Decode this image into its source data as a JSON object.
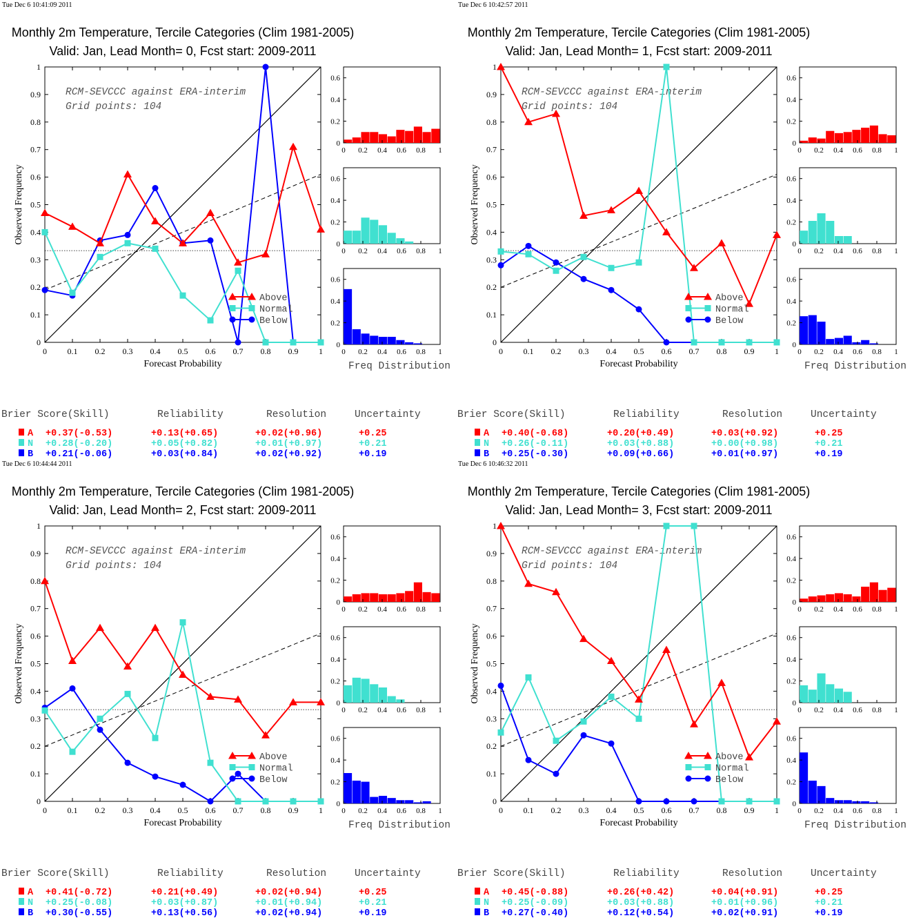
{
  "colors": {
    "above": "#ff0000",
    "normal": "#40e0d0",
    "below": "#0000ff",
    "diagonal": "#000000",
    "skill_line": "#000000",
    "climatology": "#000000"
  },
  "common": {
    "title": "Monthly 2m Temperature, Tercile Categories (Clim 1981-2005)",
    "xlabel": "Forecast Probability",
    "ylabel": "Observed Frequency",
    "annotation_1": "RCM-SEVCCC against ERA-interim",
    "annotation_2": "Grid points:  104",
    "legend": [
      "Above",
      "Normal",
      "Below"
    ],
    "freq_label": "Freq Distribution",
    "score_headers": [
      "Brier Score(Skill)",
      "Reliability",
      "Resolution",
      "Uncertainty"
    ],
    "x_ticks": [
      "0",
      "0.1",
      "0.2",
      "0.3",
      "0.4",
      "0.5",
      "0.6",
      "0.7",
      "0.8",
      "0.9",
      "1"
    ],
    "y_ticks": [
      "0",
      "0.1",
      "0.2",
      "0.3",
      "0.4",
      "0.5",
      "0.6",
      "0.7",
      "0.8",
      "0.9",
      "1"
    ],
    "hist_x_ticks": [
      "0",
      "0.2",
      "0.4",
      "0.6",
      "0.8",
      "1"
    ],
    "hist_y_ticks": [
      "0",
      "0.2",
      "0.4",
      "0.6"
    ],
    "category_letters": [
      "A",
      "N",
      "B"
    ]
  },
  "chart_data": [
    {
      "type": "line",
      "timestamp": "Tue Dec  6 10:41:09 2011",
      "subtitle": "Valid: Jan, Lead Month= 0, Fcst start: 2009-2011",
      "x": [
        0,
        0.1,
        0.2,
        0.3,
        0.4,
        0.5,
        0.6,
        0.7,
        0.8,
        0.9,
        1.0
      ],
      "xlim": [
        0,
        1
      ],
      "ylim": [
        0,
        1
      ],
      "climatology": 0.333,
      "skill_line": [
        [
          0,
          0.19
        ],
        [
          1,
          0.61
        ]
      ],
      "series": [
        {
          "name": "Above",
          "values": [
            0.47,
            0.42,
            0.36,
            0.61,
            0.44,
            0.36,
            0.47,
            0.29,
            0.32,
            0.71,
            0.41
          ]
        },
        {
          "name": "Normal",
          "values": [
            0.4,
            0.18,
            0.31,
            0.36,
            0.34,
            0.17,
            0.08,
            0.26,
            0.0,
            0.0,
            0.0
          ]
        },
        {
          "name": "Below",
          "values": [
            0.19,
            0.17,
            0.37,
            0.39,
            0.56,
            0.36,
            0.37,
            0.0,
            1.0,
            0.0,
            0.0
          ]
        }
      ],
      "freq_dist": {
        "bins": [
          0,
          0.1,
          0.2,
          0.3,
          0.4,
          0.5,
          0.6,
          0.7,
          0.8,
          0.9,
          1.0
        ],
        "above": [
          0.03,
          0.05,
          0.1,
          0.1,
          0.08,
          0.06,
          0.12,
          0.11,
          0.15,
          0.1,
          0.13
        ],
        "normal": [
          0.12,
          0.12,
          0.24,
          0.22,
          0.17,
          0.1,
          0.05,
          0.02,
          0,
          0,
          0
        ],
        "below": [
          0.51,
          0.14,
          0.1,
          0.08,
          0.07,
          0.07,
          0.04,
          0.02,
          0.01,
          0,
          0
        ]
      },
      "scores": {
        "A": [
          "+0.37(-0.53)",
          "+0.13(+0.65)",
          "+0.02(+0.96)",
          "+0.25"
        ],
        "N": [
          "+0.28(-0.20)",
          "+0.05(+0.82)",
          "+0.01(+0.97)",
          "+0.21"
        ],
        "B": [
          "+0.21(-0.06)",
          "+0.03(+0.84)",
          "+0.02(+0.92)",
          "+0.19"
        ]
      }
    },
    {
      "type": "line",
      "timestamp": "Tue Dec  6 10:42:57 2011",
      "subtitle": "Valid: Jan, Lead Month= 1, Fcst start: 2009-2011",
      "x": [
        0,
        0.1,
        0.2,
        0.3,
        0.4,
        0.5,
        0.6,
        0.7,
        0.8,
        0.9,
        1.0
      ],
      "xlim": [
        0,
        1
      ],
      "ylim": [
        0,
        1
      ],
      "climatology": 0.333,
      "skill_line": [
        [
          0,
          0.2
        ],
        [
          1,
          0.61
        ]
      ],
      "series": [
        {
          "name": "Above",
          "values": [
            1.0,
            0.8,
            0.83,
            0.46,
            0.48,
            0.55,
            0.4,
            0.27,
            0.36,
            0.14,
            0.39
          ]
        },
        {
          "name": "Normal",
          "values": [
            0.33,
            0.32,
            0.26,
            0.31,
            0.27,
            0.29,
            1.0,
            0.0,
            0.0,
            0.0,
            0.0
          ]
        },
        {
          "name": "Below",
          "values": [
            0.28,
            0.35,
            0.29,
            0.23,
            0.19,
            0.12,
            0.0,
            0.0,
            0.0,
            0.0,
            0.0
          ]
        }
      ],
      "freq_dist": {
        "bins": [
          0,
          0.1,
          0.2,
          0.3,
          0.4,
          0.5,
          0.6,
          0.7,
          0.8,
          0.9,
          1.0
        ],
        "above": [
          0.02,
          0.05,
          0.04,
          0.11,
          0.09,
          0.1,
          0.12,
          0.14,
          0.16,
          0.08,
          0.07
        ],
        "normal": [
          0.12,
          0.21,
          0.28,
          0.21,
          0.07,
          0.07,
          0,
          0,
          0,
          0,
          0
        ],
        "below": [
          0.26,
          0.27,
          0.21,
          0.05,
          0.06,
          0.08,
          0.02,
          0.04,
          0.01,
          0,
          0
        ]
      },
      "scores": {
        "A": [
          "+0.40(-0.68)",
          "+0.20(+0.49)",
          "+0.03(+0.92)",
          "+0.25"
        ],
        "N": [
          "+0.26(-0.11)",
          "+0.03(+0.88)",
          "+0.00(+0.98)",
          "+0.21"
        ],
        "B": [
          "+0.25(-0.30)",
          "+0.09(+0.66)",
          "+0.01(+0.97)",
          "+0.19"
        ]
      }
    },
    {
      "type": "line",
      "timestamp": "Tue Dec  6 10:44:44 2011",
      "subtitle": "Valid: Jan, Lead Month= 2, Fcst start: 2009-2011",
      "x": [
        0,
        0.1,
        0.2,
        0.3,
        0.4,
        0.5,
        0.6,
        0.7,
        0.8,
        0.9,
        1.0
      ],
      "xlim": [
        0,
        1
      ],
      "ylim": [
        0,
        1
      ],
      "climatology": 0.333,
      "skill_line": [
        [
          0,
          0.2
        ],
        [
          1,
          0.61
        ]
      ],
      "series": [
        {
          "name": "Above",
          "values": [
            0.8,
            0.51,
            0.63,
            0.49,
            0.63,
            0.46,
            0.38,
            0.37,
            0.24,
            0.36,
            0.36
          ]
        },
        {
          "name": "Normal",
          "values": [
            0.33,
            0.18,
            0.3,
            0.39,
            0.23,
            0.65,
            0.14,
            0.0,
            0.0,
            0.0,
            0.0
          ]
        },
        {
          "name": "Below",
          "values": [
            0.34,
            0.41,
            0.26,
            0.14,
            0.09,
            0.06,
            0.0,
            0.1,
            0.0,
            0.0,
            0.0
          ]
        }
      ],
      "freq_dist": {
        "bins": [
          0,
          0.1,
          0.2,
          0.3,
          0.4,
          0.5,
          0.6,
          0.7,
          0.8,
          0.9,
          1.0
        ],
        "above": [
          0.05,
          0.07,
          0.08,
          0.08,
          0.07,
          0.07,
          0.08,
          0.1,
          0.18,
          0.09,
          0.08
        ],
        "normal": [
          0.16,
          0.23,
          0.22,
          0.17,
          0.14,
          0.06,
          0.03,
          0,
          0,
          0,
          0
        ],
        "below": [
          0.28,
          0.21,
          0.2,
          0.06,
          0.07,
          0.05,
          0.03,
          0.03,
          0.01,
          0.02,
          0
        ]
      },
      "scores": {
        "A": [
          "+0.41(-0.72)",
          "+0.21(+0.49)",
          "+0.02(+0.94)",
          "+0.25"
        ],
        "N": [
          "+0.25(-0.08)",
          "+0.03(+0.87)",
          "+0.01(+0.94)",
          "+0.21"
        ],
        "B": [
          "+0.30(-0.55)",
          "+0.13(+0.56)",
          "+0.02(+0.94)",
          "+0.19"
        ]
      }
    },
    {
      "type": "line",
      "timestamp": "Tue Dec  6 10:46:32 2011",
      "subtitle": "Valid: Jan, Lead Month= 3, Fcst start: 2009-2011",
      "x": [
        0,
        0.1,
        0.2,
        0.3,
        0.4,
        0.5,
        0.6,
        0.7,
        0.8,
        0.9,
        1.0
      ],
      "xlim": [
        0,
        1
      ],
      "ylim": [
        0,
        1
      ],
      "climatology": 0.333,
      "skill_line": [
        [
          0,
          0.2
        ],
        [
          1,
          0.61
        ]
      ],
      "series": [
        {
          "name": "Above",
          "values": [
            1.0,
            0.79,
            0.76,
            0.59,
            0.51,
            0.37,
            0.55,
            0.28,
            0.43,
            0.16,
            0.29
          ]
        },
        {
          "name": "Normal",
          "values": [
            0.25,
            0.45,
            0.22,
            0.29,
            0.38,
            0.3,
            1.0,
            1.0,
            0.0,
            0.0,
            0.0
          ]
        },
        {
          "name": "Below",
          "values": [
            0.42,
            0.15,
            0.1,
            0.24,
            0.21,
            0.0,
            0.0,
            0.0,
            0.0,
            0.0,
            0.0
          ]
        }
      ],
      "freq_dist": {
        "bins": [
          0,
          0.1,
          0.2,
          0.3,
          0.4,
          0.5,
          0.6,
          0.7,
          0.8,
          0.9,
          1.0
        ],
        "above": [
          0.03,
          0.05,
          0.06,
          0.07,
          0.08,
          0.07,
          0.05,
          0.14,
          0.18,
          0.11,
          0.13
        ],
        "normal": [
          0.16,
          0.12,
          0.27,
          0.17,
          0.13,
          0.1,
          0,
          0,
          0,
          0,
          0
        ],
        "below": [
          0.47,
          0.21,
          0.16,
          0.05,
          0.03,
          0.03,
          0.02,
          0.02,
          0.01,
          0,
          0
        ]
      },
      "scores": {
        "A": [
          "+0.45(-0.88)",
          "+0.26(+0.42)",
          "+0.04(+0.91)",
          "+0.25"
        ],
        "N": [
          "+0.25(-0.09)",
          "+0.03(+0.88)",
          "+0.01(+0.96)",
          "+0.21"
        ],
        "B": [
          "+0.27(-0.40)",
          "+0.12(+0.54)",
          "+0.02(+0.91)",
          "+0.19"
        ]
      }
    }
  ]
}
